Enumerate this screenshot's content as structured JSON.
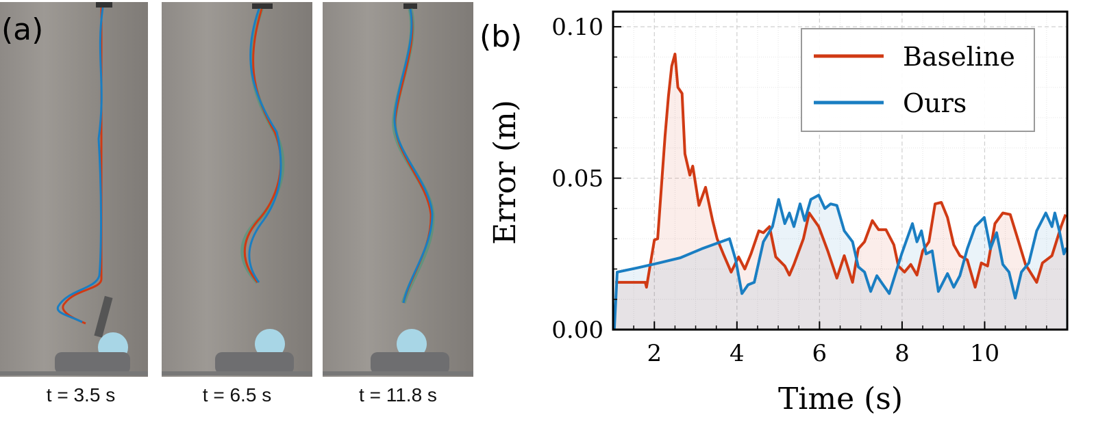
{
  "panel_a": {
    "label": "(a)",
    "captions": [
      "t = 3.5 s",
      "t = 6.5 s",
      "t = 11.8 s"
    ]
  },
  "panel_b": {
    "label": "(b)"
  },
  "colors": {
    "baseline": "#d03a14",
    "ours": "#1a7ec2",
    "target": "#3f9a78"
  },
  "chart_data": {
    "type": "line",
    "xlabel": "Time (s)",
    "ylabel": "Error (m)",
    "xlim": [
      1,
      12
    ],
    "ylim": [
      0,
      0.105
    ],
    "xticks": [
      2,
      4,
      6,
      8,
      10
    ],
    "xtick_labels": [
      "2",
      "4",
      "6",
      "8",
      "10"
    ],
    "yticks": [
      0,
      0.05,
      0.1
    ],
    "ytick_labels": [
      "0.00",
      "0.05",
      "0.10"
    ],
    "grid": true,
    "legend_position": "top-right",
    "series": [
      {
        "name": "Baseline",
        "color": "#d03a14",
        "filled": true,
        "points": [
          [
            1.05,
            0.0156
          ],
          [
            1.78,
            0.0156
          ],
          [
            1.81,
            0.014
          ],
          [
            2.0,
            0.0296
          ],
          [
            2.08,
            0.03
          ],
          [
            2.26,
            0.064
          ],
          [
            2.34,
            0.077
          ],
          [
            2.42,
            0.087
          ],
          [
            2.5,
            0.091
          ],
          [
            2.57,
            0.08
          ],
          [
            2.67,
            0.078
          ],
          [
            2.74,
            0.058
          ],
          [
            2.86,
            0.051
          ],
          [
            2.93,
            0.054
          ],
          [
            3.08,
            0.041
          ],
          [
            3.24,
            0.047
          ],
          [
            3.41,
            0.036
          ],
          [
            3.52,
            0.03
          ],
          [
            3.67,
            0.025
          ],
          [
            3.86,
            0.019
          ],
          [
            4.04,
            0.024
          ],
          [
            4.19,
            0.02
          ],
          [
            4.34,
            0.025
          ],
          [
            4.53,
            0.0326
          ],
          [
            4.64,
            0.032
          ],
          [
            4.79,
            0.034
          ],
          [
            4.94,
            0.024
          ],
          [
            5.16,
            0.021
          ],
          [
            5.27,
            0.018
          ],
          [
            5.38,
            0.0215
          ],
          [
            5.61,
            0.03
          ],
          [
            5.75,
            0.0385
          ],
          [
            5.98,
            0.034
          ],
          [
            6.2,
            0.026
          ],
          [
            6.42,
            0.017
          ],
          [
            6.6,
            0.0244
          ],
          [
            6.8,
            0.0156
          ],
          [
            6.94,
            0.0267
          ],
          [
            7.09,
            0.029
          ],
          [
            7.28,
            0.036
          ],
          [
            7.43,
            0.033
          ],
          [
            7.61,
            0.033
          ],
          [
            7.8,
            0.028
          ],
          [
            7.91,
            0.021
          ],
          [
            8.06,
            0.019
          ],
          [
            8.21,
            0.0215
          ],
          [
            8.36,
            0.018
          ],
          [
            8.5,
            0.026
          ],
          [
            8.65,
            0.029
          ],
          [
            8.8,
            0.0415
          ],
          [
            8.95,
            0.042
          ],
          [
            9.1,
            0.037
          ],
          [
            9.25,
            0.028
          ],
          [
            9.4,
            0.0244
          ],
          [
            9.58,
            0.023
          ],
          [
            9.77,
            0.014
          ],
          [
            9.92,
            0.022
          ],
          [
            10.07,
            0.021
          ],
          [
            10.25,
            0.035
          ],
          [
            10.44,
            0.0385
          ],
          [
            10.62,
            0.038
          ],
          [
            10.8,
            0.03
          ],
          [
            10.99,
            0.0215
          ],
          [
            11.26,
            0.0156
          ],
          [
            11.4,
            0.022
          ],
          [
            11.63,
            0.0244
          ],
          [
            11.85,
            0.034
          ],
          [
            11.96,
            0.038
          ]
        ]
      },
      {
        "name": "Ours",
        "color": "#1a7ec2",
        "filled": true,
        "points": [
          [
            1.03,
            0.0
          ],
          [
            1.1,
            0.019
          ],
          [
            1.59,
            0.0204
          ],
          [
            2.11,
            0.022
          ],
          [
            2.63,
            0.0237
          ],
          [
            3.15,
            0.0267
          ],
          [
            3.82,
            0.03
          ],
          [
            3.97,
            0.023
          ],
          [
            4.12,
            0.0119
          ],
          [
            4.27,
            0.0148
          ],
          [
            4.42,
            0.0156
          ],
          [
            4.64,
            0.029
          ],
          [
            4.86,
            0.034
          ],
          [
            5.01,
            0.043
          ],
          [
            5.16,
            0.035
          ],
          [
            5.27,
            0.0385
          ],
          [
            5.38,
            0.034
          ],
          [
            5.53,
            0.0415
          ],
          [
            5.64,
            0.036
          ],
          [
            5.79,
            0.043
          ],
          [
            5.98,
            0.0444
          ],
          [
            6.13,
            0.04
          ],
          [
            6.27,
            0.0415
          ],
          [
            6.42,
            0.041
          ],
          [
            6.6,
            0.0326
          ],
          [
            6.8,
            0.029
          ],
          [
            6.94,
            0.0207
          ],
          [
            7.09,
            0.019
          ],
          [
            7.24,
            0.0126
          ],
          [
            7.39,
            0.0178
          ],
          [
            7.54,
            0.0148
          ],
          [
            7.69,
            0.0119
          ],
          [
            7.84,
            0.0185
          ],
          [
            7.99,
            0.025
          ],
          [
            8.25,
            0.035
          ],
          [
            8.36,
            0.029
          ],
          [
            8.47,
            0.0326
          ],
          [
            8.58,
            0.025
          ],
          [
            8.73,
            0.026
          ],
          [
            8.88,
            0.0126
          ],
          [
            9.1,
            0.0185
          ],
          [
            9.25,
            0.014
          ],
          [
            9.4,
            0.0178
          ],
          [
            9.58,
            0.0267
          ],
          [
            9.77,
            0.034
          ],
          [
            9.99,
            0.037
          ],
          [
            10.14,
            0.0267
          ],
          [
            10.29,
            0.032
          ],
          [
            10.44,
            0.0215
          ],
          [
            10.59,
            0.019
          ],
          [
            10.74,
            0.0104
          ],
          [
            10.89,
            0.019
          ],
          [
            11.07,
            0.022
          ],
          [
            11.26,
            0.0326
          ],
          [
            11.48,
            0.0385
          ],
          [
            11.63,
            0.034
          ],
          [
            11.7,
            0.0385
          ],
          [
            11.81,
            0.0326
          ],
          [
            11.92,
            0.025
          ],
          [
            11.98,
            0.027
          ]
        ]
      }
    ]
  }
}
